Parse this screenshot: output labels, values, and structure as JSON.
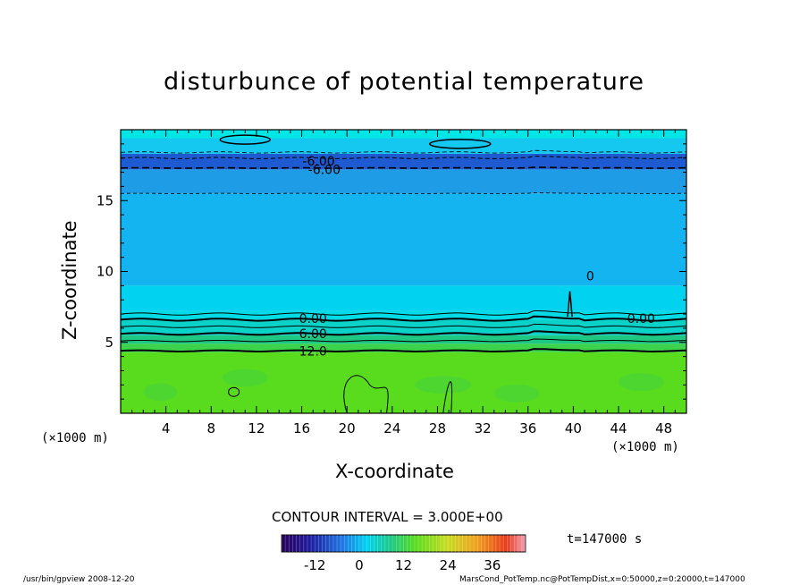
{
  "chart_data": {
    "type": "heatmap",
    "title": "disturbunce of potential temperature",
    "xlabel": "X-coordinate",
    "ylabel": "Z-coordinate",
    "x_unit_left": "(×1000 m)",
    "x_unit_right": "(×1000 m)",
    "xlim": [
      0,
      50
    ],
    "ylim": [
      0,
      20
    ],
    "xticks": [
      4,
      8,
      12,
      16,
      20,
      24,
      28,
      32,
      36,
      40,
      44,
      48
    ],
    "yticks": [
      5,
      10,
      15
    ],
    "contour_interval_text": "CONTOUR INTERVAL = 3.000E+00",
    "contour_labels": [
      {
        "text": "0.00",
        "x": 17,
        "z": 6.7
      },
      {
        "text": "6.00",
        "x": 17,
        "z": 5.6
      },
      {
        "text": "12.0",
        "x": 17,
        "z": 4.4
      },
      {
        "text": "0.00",
        "x": 46,
        "z": 6.7
      },
      {
        "text": "-6.00",
        "x": 17.5,
        "z": 17.8
      },
      {
        "text": "-6.00",
        "x": 18,
        "z": 17.2
      },
      {
        "text": "0",
        "x": 41.5,
        "z": 9.7
      }
    ],
    "bands": [
      {
        "z_from": 0,
        "z_to": 4.3,
        "value": 18,
        "color": "#5adc1e"
      },
      {
        "z_from": 4.3,
        "z_to": 4.9,
        "value": 12,
        "color": "#3cd24c"
      },
      {
        "z_from": 4.9,
        "z_to": 5.5,
        "value": 9,
        "color": "#1ec882"
      },
      {
        "z_from": 5.5,
        "z_to": 6.6,
        "value": 3,
        "color": "#0ad2c8"
      },
      {
        "z_from": 6.6,
        "z_to": 7.2,
        "value": 1,
        "color": "#00dce6"
      },
      {
        "z_from": 7.2,
        "z_to": 9.0,
        "value": 0,
        "color": "#00d2f0"
      },
      {
        "z_from": 9.0,
        "z_to": 15.5,
        "value": -3,
        "color": "#14b4f0"
      },
      {
        "z_from": 15.5,
        "z_to": 17.2,
        "value": -6,
        "color": "#1e9ce6"
      },
      {
        "z_from": 17.2,
        "z_to": 18.3,
        "value": -9,
        "color": "#1e5ad2"
      },
      {
        "z_from": 18.3,
        "z_to": 19.4,
        "value": -3,
        "color": "#14c8f0"
      },
      {
        "z_from": 19.4,
        "z_to": 20,
        "value": 0,
        "color": "#00e6e6"
      }
    ],
    "colorbar": {
      "ticks": [
        "-12",
        "0",
        "12",
        "24",
        "36"
      ],
      "tick_values": [
        -12,
        0,
        12,
        24,
        36
      ],
      "range": [
        -21,
        45
      ]
    },
    "time_text": "t=147000 s",
    "grid": false
  },
  "footer": {
    "left": "/usr/bin/gpview   2008-12-20",
    "right": "MarsCond_PotTemp.nc@PotTempDist,x=0:50000,z=0:20000,t=147000"
  }
}
